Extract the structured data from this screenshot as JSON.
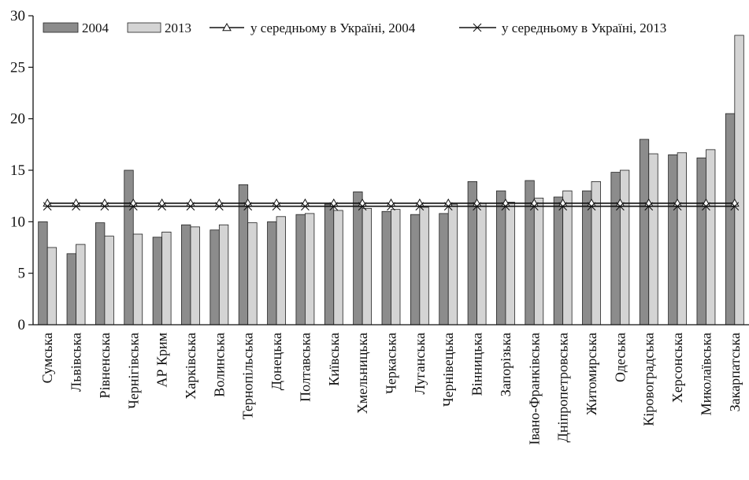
{
  "chart_data": {
    "type": "bar",
    "title": "",
    "xlabel": "",
    "ylabel": "",
    "ylim": [
      0,
      30
    ],
    "yticks": [
      0,
      5,
      10,
      15,
      20,
      25,
      30
    ],
    "grid": false,
    "legend": "top",
    "categories": [
      "Сумська",
      "Львівська",
      "Рівненська",
      "Чернігівська",
      "АР Крим",
      "Харківська",
      "Волинська",
      "Тернопільська",
      "Донецька",
      "Полтавська",
      "Київська",
      "Хмельницька",
      "Черкаська",
      "Луганська",
      "Чернівецька",
      "Вінницька",
      "Запорізька",
      "Івано-Франківська",
      "Дніпропетровська",
      "Житомирська",
      "Одеська",
      "Кіровоградська",
      "Херсонська",
      "Миколаївська",
      "Закарпатська"
    ],
    "series": [
      {
        "name": "2004",
        "kind": "bar",
        "color": "#8c8c8c",
        "values": [
          10.0,
          6.9,
          9.9,
          15.0,
          8.5,
          9.7,
          9.2,
          13.6,
          10.0,
          10.7,
          11.7,
          12.9,
          11.0,
          10.7,
          10.8,
          13.9,
          13.0,
          14.0,
          12.4,
          13.0,
          14.8,
          18.0,
          16.5,
          16.2,
          20.5
        ]
      },
      {
        "name": "2013",
        "kind": "bar",
        "color": "#d4d4d4",
        "values": [
          7.5,
          7.8,
          8.6,
          8.8,
          9.0,
          9.5,
          9.7,
          9.9,
          10.5,
          10.8,
          11.1,
          11.3,
          11.2,
          11.4,
          11.7,
          11.8,
          11.9,
          12.3,
          13.0,
          13.9,
          15.0,
          16.6,
          16.7,
          17.0,
          28.1
        ]
      },
      {
        "name": "у середньому в Україні, 2004",
        "kind": "line",
        "marker": "triangle",
        "value": 11.8
      },
      {
        "name": "у середньому в Україні, 2013",
        "kind": "line",
        "marker": "x",
        "value": 11.5
      }
    ]
  }
}
